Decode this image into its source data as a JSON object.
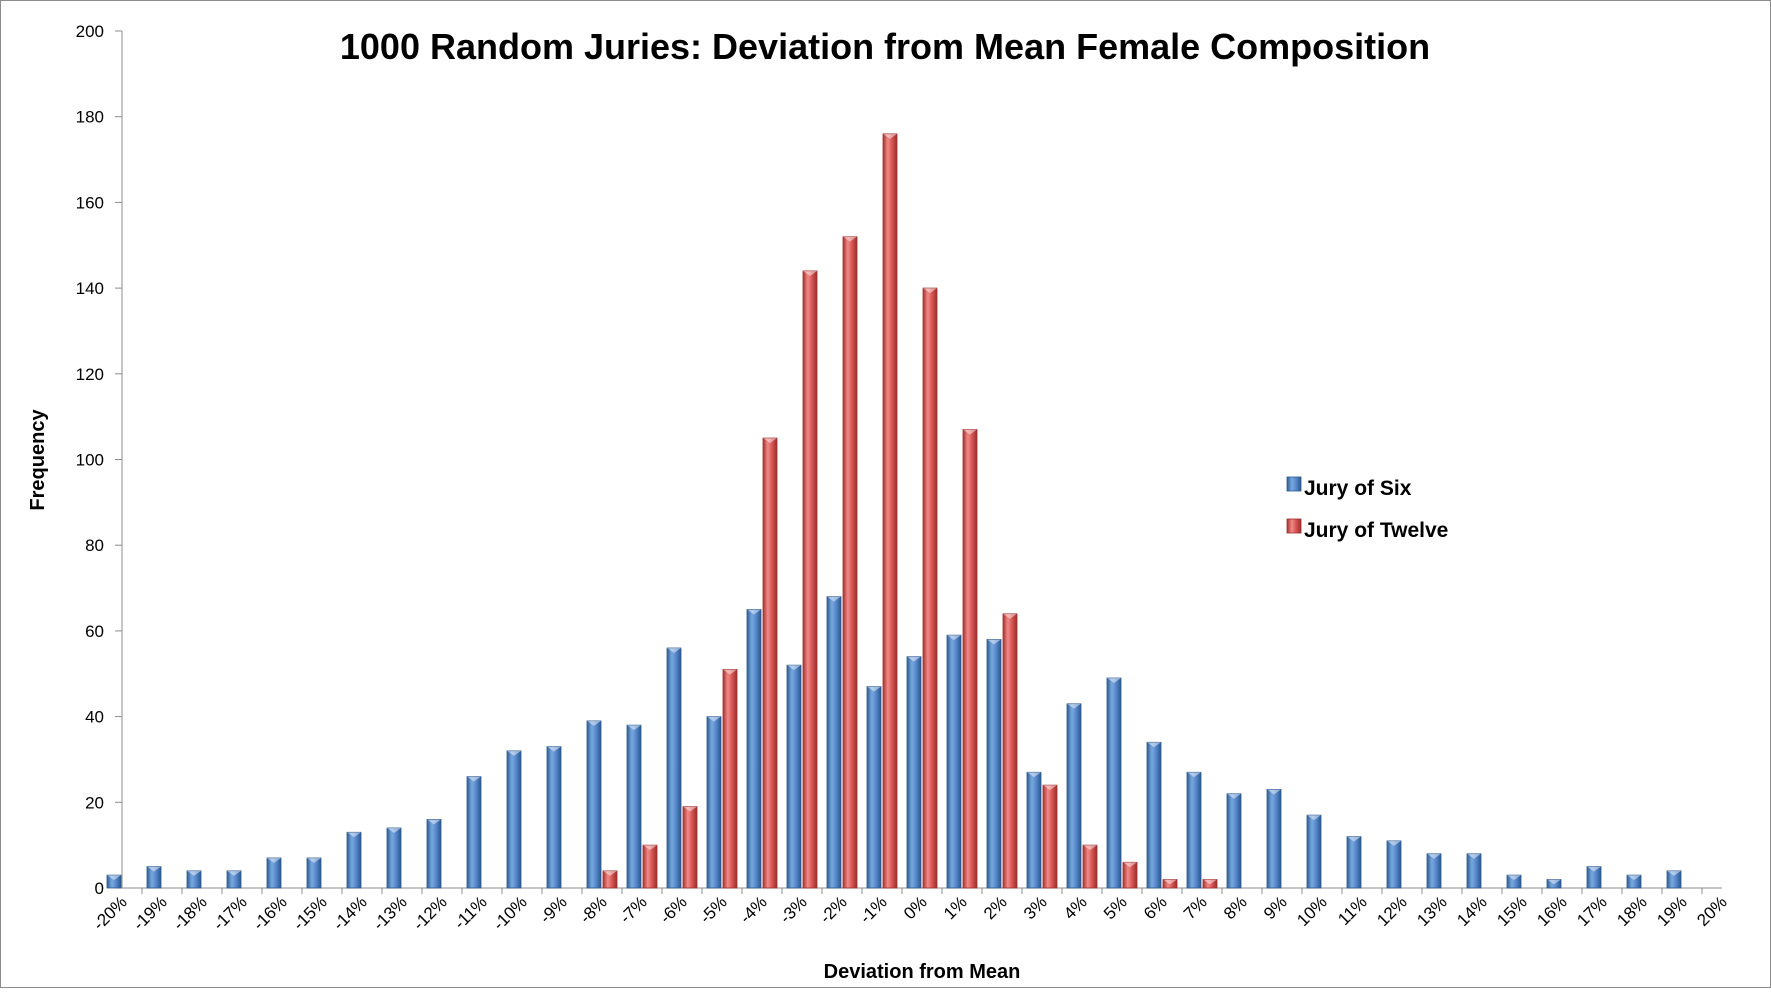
{
  "chart_data": {
    "type": "bar",
    "title": "1000 Random Juries: Deviation from Mean Female Composition",
    "xlabel": "Deviation from Mean",
    "ylabel": "Frequency",
    "ylim": [
      0,
      200
    ],
    "yticks": [
      "0",
      "20",
      "40",
      "60",
      "80",
      "100",
      "120",
      "140",
      "160",
      "180",
      "200"
    ],
    "categories": [
      "-20%",
      "-19%",
      "-18%",
      "-17%",
      "-16%",
      "-15%",
      "-14%",
      "-13%",
      "-12%",
      "-11%",
      "-10%",
      "-9%",
      "-8%",
      "-7%",
      "-6%",
      "-5%",
      "-4%",
      "-3%",
      "-2%",
      "-1%",
      "0%",
      "1%",
      "2%",
      "3%",
      "4%",
      "5%",
      "6%",
      "7%",
      "8%",
      "9%",
      "10%",
      "11%",
      "12%",
      "13%",
      "14%",
      "15%",
      "16%",
      "17%",
      "18%",
      "19%",
      "20%"
    ],
    "series": [
      {
        "name": "Jury of Six",
        "color": "#4f81bd",
        "values": [
          3,
          5,
          4,
          4,
          7,
          7,
          13,
          14,
          16,
          26,
          32,
          33,
          39,
          38,
          56,
          40,
          65,
          52,
          68,
          47,
          54,
          59,
          58,
          27,
          43,
          49,
          34,
          27,
          22,
          23,
          17,
          12,
          11,
          8,
          8,
          3,
          2,
          5,
          3,
          4,
          null
        ]
      },
      {
        "name": "Jury of Twelve",
        "color": "#c0504d",
        "values": [
          null,
          null,
          null,
          null,
          null,
          null,
          null,
          null,
          null,
          null,
          null,
          null,
          4,
          10,
          19,
          51,
          105,
          144,
          152,
          176,
          140,
          107,
          64,
          24,
          10,
          6,
          2,
          2,
          null,
          null,
          null,
          null,
          null,
          null,
          null,
          null,
          null,
          null,
          null,
          null,
          null
        ]
      }
    ],
    "grid": false,
    "legend_position": "right"
  }
}
